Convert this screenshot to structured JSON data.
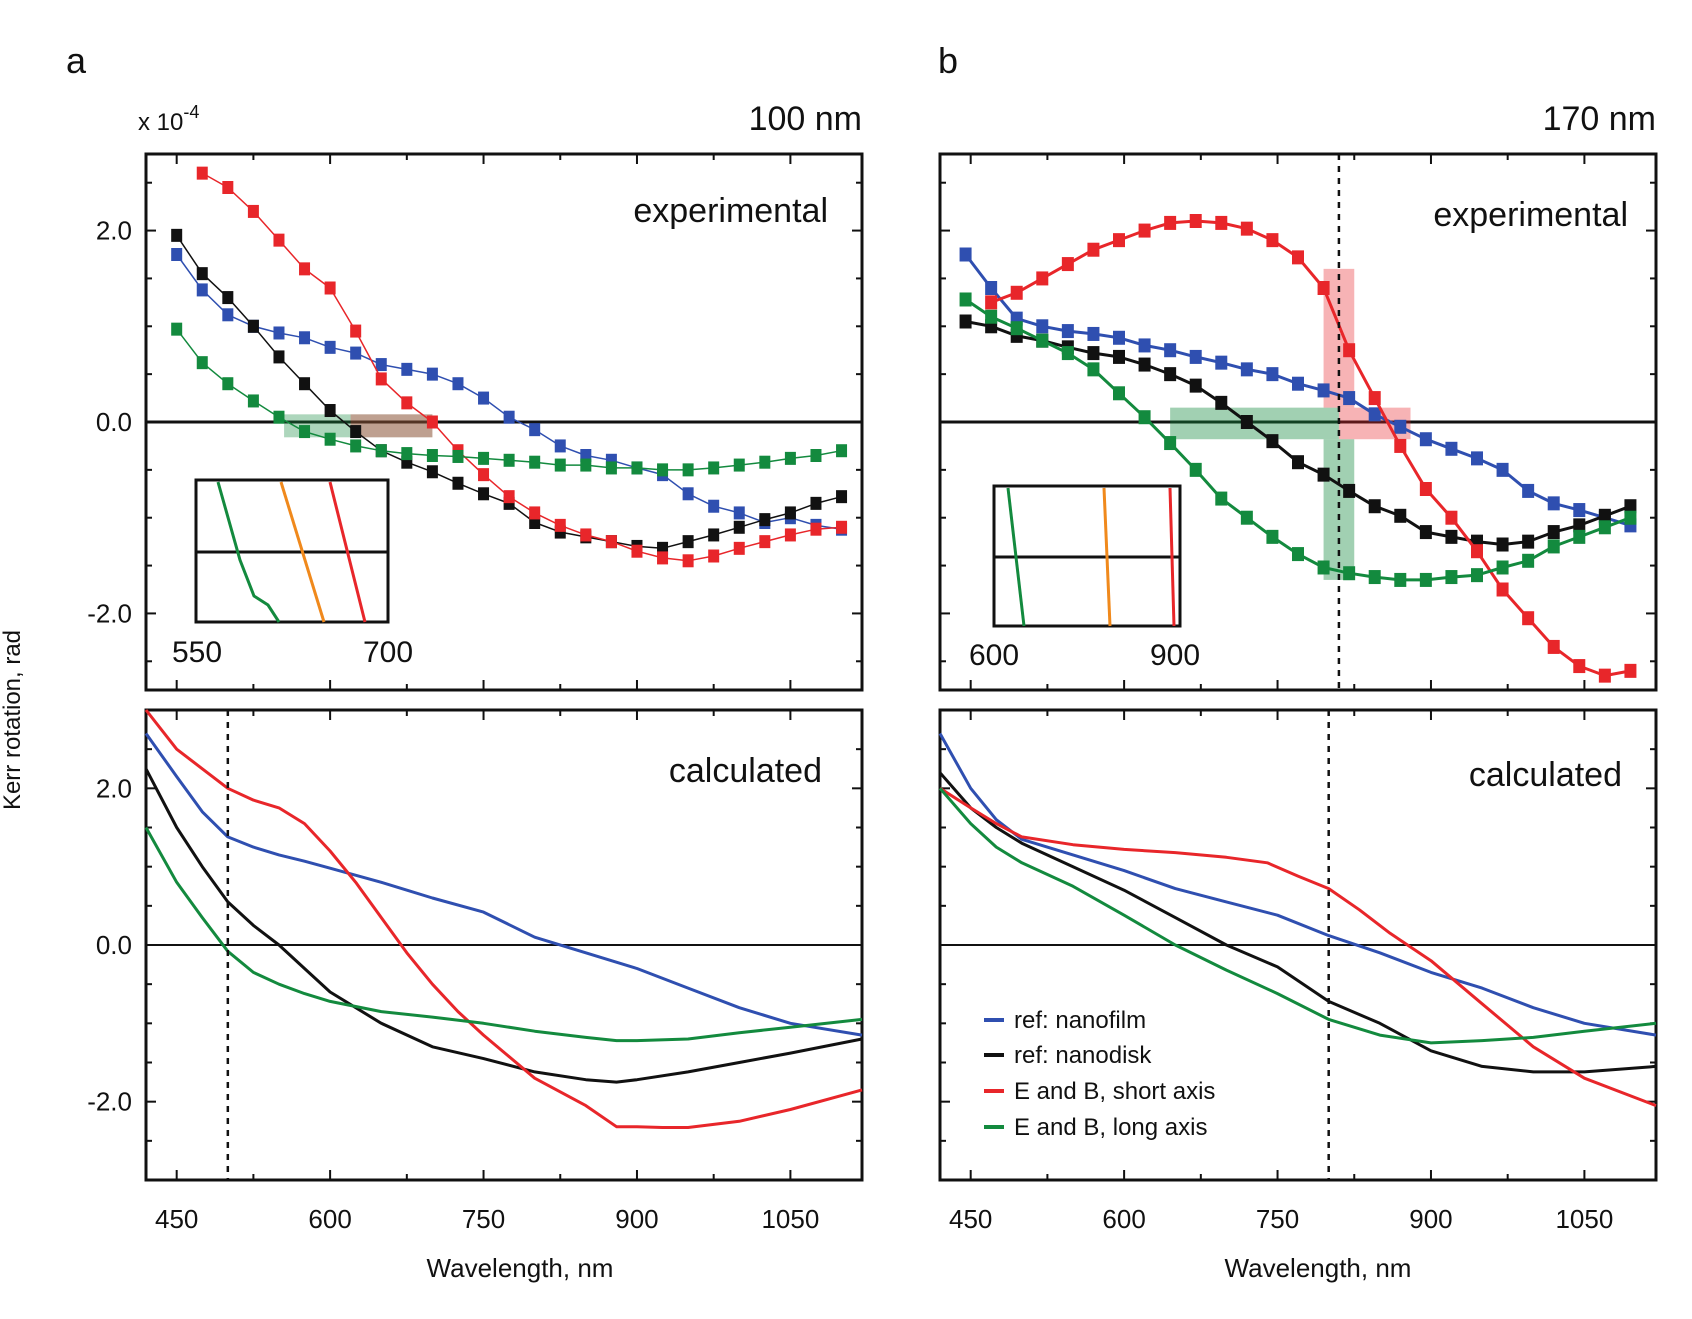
{
  "figure": {
    "y_axis_label": "Kerr rotation, rad",
    "scale_label": "x 10",
    "scale_exponent": "-4",
    "colors": {
      "blue": "#2f4fb0",
      "black": "#111111",
      "red": "#e8262a",
      "green": "#138a3e",
      "orange": "#f0891c"
    }
  },
  "panels": [
    {
      "letter": "a",
      "size_label": "100 nm",
      "x_label": "Wavelength, nm",
      "xlim": [
        420,
        1120
      ],
      "xticks": [
        450,
        600,
        750,
        900,
        1050
      ],
      "ylim": [
        -2.8,
        2.8
      ],
      "yticks": [
        "2.0",
        "0.0",
        "-2.0"
      ],
      "top_label": "experimental",
      "bottom_label": "calculated",
      "inset_ticks": [
        "550",
        "700"
      ],
      "dashed_x": 500
    },
    {
      "letter": "b",
      "size_label": "170 nm",
      "x_label": "Wavelength, nm",
      "xlim": [
        420,
        1120
      ],
      "xticks": [
        450,
        600,
        750,
        900,
        1050
      ],
      "ylim": [
        -2.8,
        2.8
      ],
      "yticks": [],
      "top_label": "experimental",
      "bottom_label": "calculated",
      "inset_ticks": [
        "600",
        "900"
      ],
      "dashed_x_top": 810,
      "dashed_x_bottom": 800
    }
  ],
  "legend": [
    {
      "label": "ref: nanofilm",
      "color": "#2f4fb0"
    },
    {
      "label": "ref: nanodisk",
      "color": "#111111"
    },
    {
      "label": "E and B, short axis",
      "color": "#e8262a"
    },
    {
      "label": "E and B, long axis",
      "color": "#138a3e"
    }
  ],
  "chart_data": [
    {
      "type": "scatter",
      "title": "a — 100 nm experimental",
      "xlabel": "Wavelength, nm",
      "ylabel": "Kerr rotation, rad (x 10^-4)",
      "xlim": [
        420,
        1120
      ],
      "ylim": [
        -2.8,
        2.8
      ],
      "series": [
        {
          "name": "ref: nanofilm",
          "color": "#2f4fb0",
          "x": [
            450,
            475,
            500,
            525,
            550,
            575,
            600,
            625,
            650,
            675,
            700,
            725,
            750,
            775,
            800,
            825,
            850,
            875,
            900,
            925,
            950,
            975,
            1000,
            1025,
            1050,
            1075,
            1100
          ],
          "y": [
            1.75,
            1.38,
            1.12,
            1.0,
            0.93,
            0.88,
            0.78,
            0.72,
            0.6,
            0.55,
            0.5,
            0.4,
            0.25,
            0.05,
            -0.08,
            -0.25,
            -0.35,
            -0.4,
            -0.48,
            -0.55,
            -0.75,
            -0.88,
            -0.95,
            -1.05,
            -1.0,
            -1.08,
            -1.12
          ]
        },
        {
          "name": "ref: nanodisk",
          "color": "#111111",
          "x": [
            450,
            475,
            500,
            525,
            550,
            575,
            600,
            625,
            650,
            675,
            700,
            725,
            750,
            775,
            800,
            825,
            850,
            875,
            900,
            925,
            950,
            975,
            1000,
            1025,
            1050,
            1075,
            1100
          ],
          "y": [
            1.95,
            1.55,
            1.3,
            1.0,
            0.68,
            0.4,
            0.12,
            -0.1,
            -0.3,
            -0.42,
            -0.52,
            -0.64,
            -0.75,
            -0.85,
            -1.05,
            -1.15,
            -1.2,
            -1.25,
            -1.3,
            -1.32,
            -1.25,
            -1.18,
            -1.1,
            -1.02,
            -0.95,
            -0.85,
            -0.78
          ]
        },
        {
          "name": "E and B, short axis",
          "color": "#e8262a",
          "x": [
            475,
            500,
            525,
            550,
            575,
            600,
            625,
            650,
            675,
            700,
            725,
            750,
            775,
            800,
            825,
            850,
            875,
            900,
            925,
            950,
            975,
            1000,
            1025,
            1050,
            1075,
            1100
          ],
          "y": [
            2.6,
            2.45,
            2.2,
            1.9,
            1.6,
            1.4,
            0.95,
            0.45,
            0.2,
            0.0,
            -0.3,
            -0.55,
            -0.78,
            -0.95,
            -1.08,
            -1.18,
            -1.25,
            -1.35,
            -1.42,
            -1.45,
            -1.4,
            -1.32,
            -1.25,
            -1.18,
            -1.12,
            -1.1
          ]
        },
        {
          "name": "E and B, long axis",
          "color": "#138a3e",
          "x": [
            450,
            475,
            500,
            525,
            550,
            575,
            600,
            625,
            650,
            675,
            700,
            725,
            750,
            775,
            800,
            825,
            850,
            875,
            900,
            925,
            950,
            975,
            1000,
            1025,
            1050,
            1075,
            1100
          ],
          "y": [
            0.97,
            0.62,
            0.4,
            0.22,
            0.05,
            -0.1,
            -0.18,
            -0.25,
            -0.3,
            -0.33,
            -0.35,
            -0.36,
            -0.38,
            -0.4,
            -0.42,
            -0.45,
            -0.45,
            -0.48,
            -0.48,
            -0.5,
            -0.5,
            -0.48,
            -0.45,
            -0.42,
            -0.38,
            -0.35,
            -0.3
          ]
        }
      ]
    },
    {
      "type": "line",
      "title": "a — 100 nm calculated",
      "xlabel": "Wavelength, nm",
      "ylabel": "Kerr rotation, rad (x 10^-4)",
      "xlim": [
        420,
        1120
      ],
      "ylim": [
        -3.0,
        3.0
      ],
      "series": [
        {
          "name": "ref: nanofilm",
          "color": "#2f4fb0",
          "x": [
            420,
            450,
            475,
            500,
            525,
            550,
            575,
            600,
            650,
            700,
            750,
            800,
            850,
            900,
            950,
            1000,
            1050,
            1120
          ],
          "y": [
            2.7,
            2.15,
            1.7,
            1.38,
            1.25,
            1.15,
            1.07,
            0.98,
            0.8,
            0.6,
            0.42,
            0.1,
            -0.1,
            -0.3,
            -0.55,
            -0.8,
            -1.0,
            -1.15
          ]
        },
        {
          "name": "ref: nanodisk",
          "color": "#111111",
          "x": [
            420,
            450,
            475,
            500,
            525,
            550,
            575,
            600,
            650,
            700,
            750,
            800,
            850,
            880,
            900,
            950,
            1000,
            1050,
            1120
          ],
          "y": [
            2.25,
            1.5,
            1.0,
            0.55,
            0.25,
            0.0,
            -0.3,
            -0.6,
            -1.0,
            -1.3,
            -1.45,
            -1.62,
            -1.72,
            -1.75,
            -1.72,
            -1.62,
            -1.5,
            -1.38,
            -1.2
          ]
        },
        {
          "name": "E and B, short axis",
          "color": "#e8262a",
          "x": [
            420,
            450,
            475,
            500,
            525,
            550,
            575,
            600,
            625,
            650,
            675,
            700,
            725,
            750,
            800,
            850,
            880,
            900,
            925,
            950,
            1000,
            1050,
            1120
          ],
          "y": [
            3.0,
            2.5,
            2.25,
            2.0,
            1.85,
            1.75,
            1.55,
            1.2,
            0.8,
            0.35,
            -0.1,
            -0.5,
            -0.85,
            -1.15,
            -1.7,
            -2.05,
            -2.32,
            -2.32,
            -2.33,
            -2.33,
            -2.25,
            -2.1,
            -1.85
          ]
        },
        {
          "name": "E and B, long axis",
          "color": "#138a3e",
          "x": [
            420,
            450,
            475,
            500,
            525,
            550,
            575,
            600,
            650,
            700,
            750,
            800,
            850,
            880,
            900,
            950,
            1000,
            1050,
            1120
          ],
          "y": [
            1.5,
            0.8,
            0.35,
            -0.08,
            -0.35,
            -0.5,
            -0.62,
            -0.72,
            -0.85,
            -0.92,
            -1.0,
            -1.1,
            -1.18,
            -1.22,
            -1.22,
            -1.2,
            -1.12,
            -1.05,
            -0.95
          ]
        }
      ]
    },
    {
      "type": "scatter",
      "title": "b — 170 nm experimental",
      "xlabel": "Wavelength, nm",
      "ylabel": "Kerr rotation, rad (x 10^-4)",
      "xlim": [
        420,
        1120
      ],
      "ylim": [
        -2.8,
        2.8
      ],
      "series": [
        {
          "name": "ref: nanofilm",
          "color": "#2f4fb0",
          "x": [
            445,
            470,
            495,
            520,
            545,
            570,
            595,
            620,
            645,
            670,
            695,
            720,
            745,
            770,
            795,
            820,
            845,
            870,
            895,
            920,
            945,
            970,
            995,
            1020,
            1045,
            1070,
            1095
          ],
          "y": [
            1.75,
            1.4,
            1.08,
            1.0,
            0.95,
            0.92,
            0.88,
            0.8,
            0.75,
            0.68,
            0.62,
            0.55,
            0.5,
            0.4,
            0.33,
            0.25,
            0.08,
            -0.05,
            -0.18,
            -0.28,
            -0.38,
            -0.5,
            -0.72,
            -0.85,
            -0.92,
            -1.0,
            -1.08
          ]
        },
        {
          "name": "ref: nanodisk",
          "color": "#111111",
          "x": [
            445,
            470,
            495,
            520,
            545,
            570,
            595,
            620,
            645,
            670,
            695,
            720,
            745,
            770,
            795,
            820,
            845,
            870,
            895,
            920,
            945,
            970,
            995,
            1020,
            1045,
            1070,
            1095
          ],
          "y": [
            1.05,
            1.0,
            0.9,
            0.85,
            0.78,
            0.72,
            0.68,
            0.6,
            0.5,
            0.38,
            0.2,
            0.0,
            -0.2,
            -0.42,
            -0.55,
            -0.72,
            -0.88,
            -0.98,
            -1.15,
            -1.2,
            -1.25,
            -1.28,
            -1.25,
            -1.15,
            -1.08,
            -0.98,
            -0.88
          ]
        },
        {
          "name": "E and B, short axis",
          "color": "#e8262a",
          "x": [
            470,
            495,
            520,
            545,
            570,
            595,
            620,
            645,
            670,
            695,
            720,
            745,
            770,
            795,
            820,
            845,
            870,
            895,
            920,
            945,
            970,
            995,
            1020,
            1045,
            1070,
            1095
          ],
          "y": [
            1.25,
            1.35,
            1.5,
            1.65,
            1.8,
            1.9,
            2.0,
            2.08,
            2.1,
            2.08,
            2.02,
            1.9,
            1.72,
            1.4,
            0.75,
            0.25,
            -0.25,
            -0.7,
            -1.0,
            -1.35,
            -1.75,
            -2.05,
            -2.35,
            -2.55,
            -2.65,
            -2.6
          ]
        },
        {
          "name": "E and B, long axis",
          "color": "#138a3e",
          "x": [
            445,
            470,
            495,
            520,
            545,
            570,
            595,
            620,
            645,
            670,
            695,
            720,
            745,
            770,
            795,
            820,
            845,
            870,
            895,
            920,
            945,
            970,
            995,
            1020,
            1045,
            1070,
            1095
          ],
          "y": [
            1.28,
            1.1,
            0.98,
            0.85,
            0.72,
            0.55,
            0.3,
            0.05,
            -0.22,
            -0.5,
            -0.8,
            -1.0,
            -1.2,
            -1.38,
            -1.52,
            -1.58,
            -1.62,
            -1.65,
            -1.65,
            -1.62,
            -1.6,
            -1.52,
            -1.45,
            -1.3,
            -1.2,
            -1.1,
            -1.0
          ]
        }
      ]
    },
    {
      "type": "line",
      "title": "b — 170 nm calculated",
      "xlabel": "Wavelength, nm",
      "ylabel": "Kerr rotation, rad (x 10^-4)",
      "xlim": [
        420,
        1120
      ],
      "ylim": [
        -3.0,
        3.0
      ],
      "series": [
        {
          "name": "ref: nanofilm",
          "color": "#2f4fb0",
          "x": [
            420,
            450,
            475,
            500,
            550,
            600,
            650,
            700,
            750,
            800,
            850,
            900,
            950,
            1000,
            1050,
            1120
          ],
          "y": [
            2.7,
            2.0,
            1.6,
            1.35,
            1.15,
            0.95,
            0.72,
            0.55,
            0.38,
            0.12,
            -0.1,
            -0.35,
            -0.55,
            -0.8,
            -1.0,
            -1.15
          ]
        },
        {
          "name": "ref: nanodisk",
          "color": "#111111",
          "x": [
            420,
            450,
            475,
            500,
            550,
            600,
            650,
            700,
            750,
            800,
            850,
            900,
            950,
            1000,
            1050,
            1120
          ],
          "y": [
            2.2,
            1.75,
            1.5,
            1.3,
            1.0,
            0.7,
            0.35,
            0.0,
            -0.28,
            -0.72,
            -1.0,
            -1.35,
            -1.55,
            -1.62,
            -1.62,
            -1.55
          ]
        },
        {
          "name": "E and B, short axis",
          "color": "#e8262a",
          "x": [
            420,
            450,
            475,
            500,
            550,
            600,
            650,
            700,
            740,
            770,
            800,
            830,
            860,
            900,
            950,
            1000,
            1050,
            1120
          ],
          "y": [
            2.0,
            1.75,
            1.55,
            1.38,
            1.28,
            1.22,
            1.18,
            1.12,
            1.05,
            0.88,
            0.72,
            0.45,
            0.15,
            -0.2,
            -0.75,
            -1.3,
            -1.7,
            -2.05
          ]
        },
        {
          "name": "E and B, long axis",
          "color": "#138a3e",
          "x": [
            420,
            450,
            475,
            500,
            550,
            600,
            650,
            700,
            750,
            800,
            850,
            900,
            950,
            1000,
            1050,
            1120
          ],
          "y": [
            2.0,
            1.55,
            1.25,
            1.05,
            0.75,
            0.38,
            0.0,
            -0.32,
            -0.62,
            -0.95,
            -1.15,
            -1.25,
            -1.22,
            -1.18,
            -1.1,
            -1.0
          ]
        }
      ]
    }
  ]
}
